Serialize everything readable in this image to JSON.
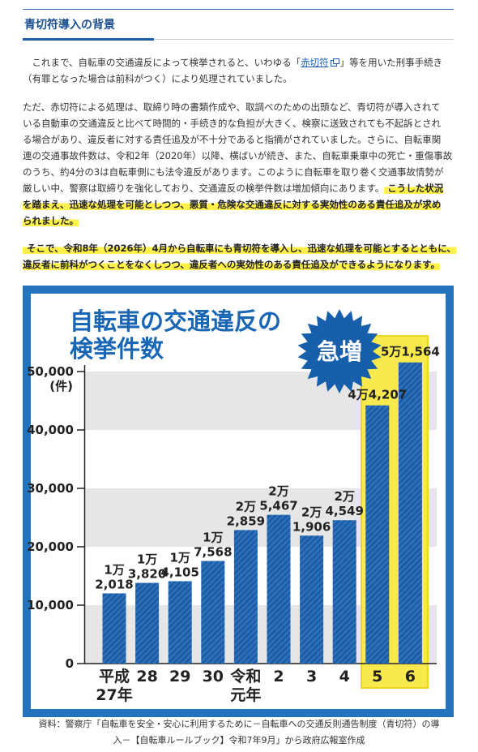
{
  "section": {
    "heading": "青切符導入の背景"
  },
  "intro": {
    "line1_pre": "これまで、自転車の交通違反によって検挙されると、いわゆる「",
    "link_text": "赤切符",
    "line1_post": "」等を用いた刑事手続き",
    "line2": "（有罪となった場合は前科がつく）により処理されていました。",
    "link_icon": "external-link-icon"
  },
  "background": {
    "lines": [
      "ただ、赤切符による処理は、取締り時の書類作成や、取調べのための出頭など、青切符が導入されて",
      "いる自動車の交通違反と比べて時間的・手続き的な負担が大きく、検察に送致されても不起訴とされ",
      "る場合があり、違反者に対する責任追及が不十分であると指摘がされていました。さらに、自転車関",
      "連の交通事故件数は、令和2年（2020年）以降、横ばいが続き、また、自転車乗車中の死亡・重傷事故",
      "のうち、約4分の3は自転車側にも法令違反があります。このように自転車を取り巻く交通事故情勢が"
    ],
    "line6": "厳しい中、警察は取締りを強化しており、交通違反の検挙件数は増加傾向にあります。",
    "line6_highlight": "こうした状況",
    "highlight_lines": [
      "を踏まえ、迅速な処理を可能としつつ、悪質・危険な交通違反に対する実効性のある責任追及が求め",
      "られました。"
    ]
  },
  "introduction": {
    "highlight_lines": [
      "そこで、令和8年（2026年）4月から自転車にも青切符を導入し、迅速な処理を可能とするとともに、",
      "違反者に前科がつくことをなくしつつ、違反者への実効性のある責任追及ができるようになります。"
    ]
  },
  "source": {
    "lines": [
      "資料：警察庁「自転車を安全・安心に利用するために－自転車への交通反則通告制度（青切符）の導",
      "入－【自転車ルールブック】令和7年9月」から政府広報室作成"
    ]
  },
  "colors": {
    "accent": "#1d5ea8",
    "link": "#1a5fb4",
    "highlight": "#fff04a",
    "chart_frame": "#2474bd",
    "chart_title": "#1866b4",
    "bar": "#2a70ba",
    "bar_stripe": "#1b579d",
    "badge": "#175fab",
    "highlight_box": "#f8ea4e",
    "band": "#e6e6e6"
  },
  "chart_data": {
    "type": "bar",
    "title_lines": [
      "自転車の交通違反の",
      "検挙件数"
    ],
    "badge": "急増",
    "ylabel": "(件)",
    "categories": [
      [
        "平成",
        "27年"
      ],
      [
        "28"
      ],
      [
        "29"
      ],
      [
        "30"
      ],
      [
        "令和",
        "元年"
      ],
      [
        "2"
      ],
      [
        "3"
      ],
      [
        "4"
      ],
      [
        "5"
      ],
      [
        "6"
      ]
    ],
    "values": [
      12018,
      13820,
      14105,
      17568,
      22859,
      25467,
      21906,
      24549,
      44207,
      51564
    ],
    "value_labels": [
      [
        "1万",
        "2,018"
      ],
      [
        "1万",
        "3,820"
      ],
      [
        "1万",
        "4,105"
      ],
      [
        "1万",
        "7,568"
      ],
      [
        "2万",
        "2,859"
      ],
      [
        "2万",
        "5,467"
      ],
      [
        "2万",
        "1,906"
      ],
      [
        "2万",
        "4,549"
      ],
      [
        "4万4,207"
      ],
      [
        "5万1,564"
      ]
    ],
    "yticks": [
      0,
      10000,
      20000,
      30000,
      40000,
      50000
    ],
    "ytick_labels": [
      "0",
      "10,000",
      "20,000",
      "30,000",
      "40,000",
      "50,000"
    ],
    "ylim": [
      0,
      50000
    ],
    "highlighted_categories": [
      "5",
      "6"
    ],
    "grid": true,
    "legend": false
  }
}
